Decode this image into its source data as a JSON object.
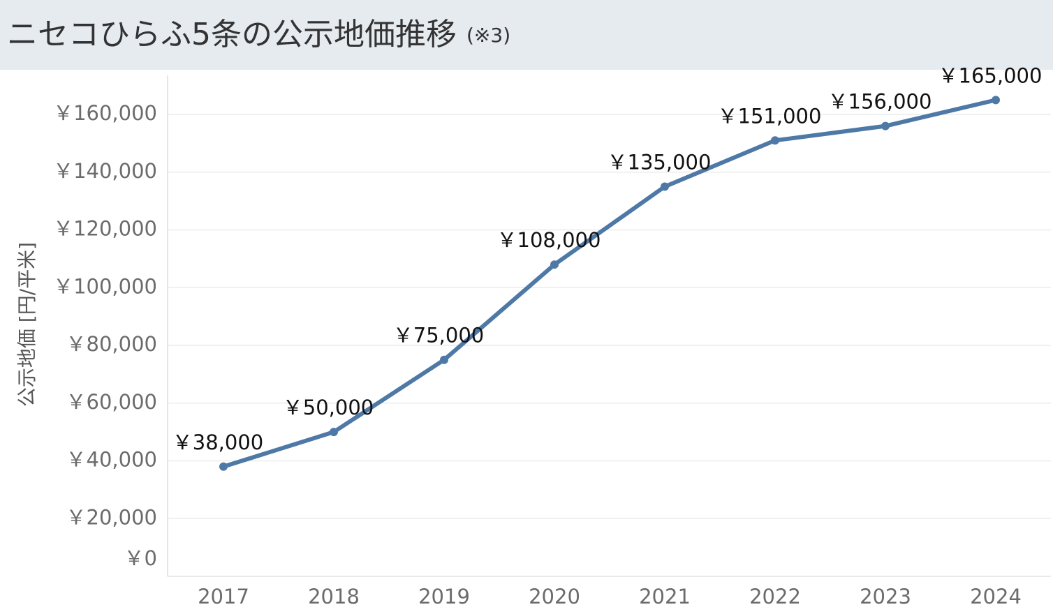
{
  "chart_data": {
    "type": "line",
    "title": "ニセコひらふ5条の公示地価推移",
    "subtitle": "(※3)",
    "y_label": "公示地価 [円/平米]",
    "categories": [
      "2017",
      "2018",
      "2019",
      "2020",
      "2021",
      "2022",
      "2023",
      "2024"
    ],
    "series": [
      {
        "name": "公示地価",
        "color": "#4e79a7",
        "values": [
          38000,
          50000,
          75000,
          108000,
          135000,
          151000,
          156000,
          165000
        ],
        "value_labels": [
          "￥38,000",
          "￥50,000",
          "￥75,000",
          "￥108,000",
          "￥135,000",
          "￥151,000",
          "￥156,000",
          "￥165,000"
        ]
      }
    ],
    "ylim": [
      0,
      175000
    ],
    "yticks": [
      {
        "value": 0,
        "label": "￥0"
      },
      {
        "value": 20000,
        "label": "￥20,000"
      },
      {
        "value": 40000,
        "label": "￥40,000"
      },
      {
        "value": 60000,
        "label": "￥60,000"
      },
      {
        "value": 80000,
        "label": "￥80,000"
      },
      {
        "value": 100000,
        "label": "￥100,000"
      },
      {
        "value": 120000,
        "label": "￥120,000"
      },
      {
        "value": 140000,
        "label": "￥140,000"
      },
      {
        "value": 160000,
        "label": "￥160,000"
      }
    ],
    "grid": true
  }
}
